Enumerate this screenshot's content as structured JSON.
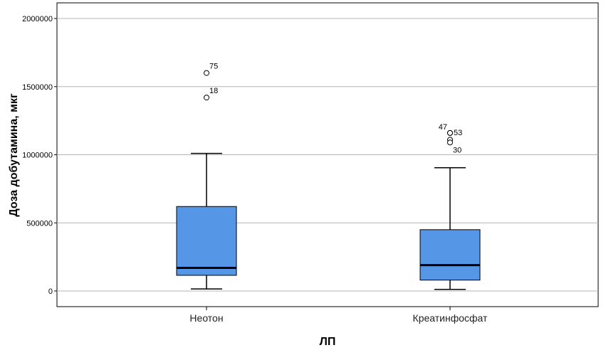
{
  "chart_data": {
    "type": "box",
    "title": "",
    "xlabel": "ЛП",
    "ylabel": "Доза добутамина, мкг",
    "ylim": [
      -110000,
      2100000
    ],
    "yticks": [
      0,
      500000,
      1000000,
      1500000,
      2000000
    ],
    "ytick_labels": [
      "0",
      "500000",
      "1000000",
      "1500000",
      "2000000"
    ],
    "grid": "horizontal",
    "box_color": "#5596e6",
    "categories": [
      "Неотон",
      "Креатинфосфат"
    ],
    "boxes": [
      {
        "category": "Неотон",
        "whisker_low": 15000,
        "q1": 115000,
        "median": 170000,
        "q3": 620000,
        "whisker_high": 1010000,
        "outliers": [
          {
            "label": "75",
            "value": 1600000
          },
          {
            "label": "18",
            "value": 1420000
          }
        ]
      },
      {
        "category": "Креатинфосфат",
        "whisker_low": 12000,
        "q1": 80000,
        "median": 190000,
        "q3": 450000,
        "whisker_high": 905000,
        "outliers": [
          {
            "label": "47",
            "value": 1160000
          },
          {
            "label": "53",
            "value": 1160000
          },
          {
            "label": "",
            "value": 1110000
          },
          {
            "label": "30",
            "value": 1090000
          }
        ]
      }
    ]
  }
}
